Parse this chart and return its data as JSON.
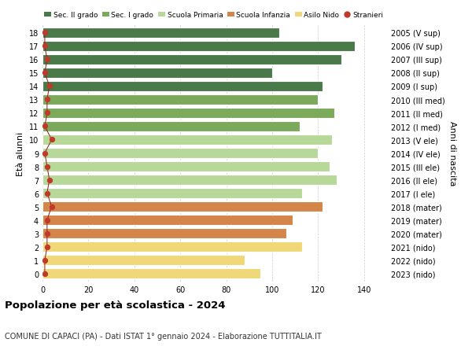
{
  "ages": [
    18,
    17,
    16,
    15,
    14,
    13,
    12,
    11,
    10,
    9,
    8,
    7,
    6,
    5,
    4,
    3,
    2,
    1,
    0
  ],
  "labels_right": [
    "2005 (V sup)",
    "2006 (IV sup)",
    "2007 (III sup)",
    "2008 (II sup)",
    "2009 (I sup)",
    "2010 (III med)",
    "2011 (II med)",
    "2012 (I med)",
    "2013 (V ele)",
    "2014 (IV ele)",
    "2015 (III ele)",
    "2016 (II ele)",
    "2017 (I ele)",
    "2018 (mater)",
    "2019 (mater)",
    "2020 (mater)",
    "2021 (nido)",
    "2022 (nido)",
    "2023 (nido)"
  ],
  "values": [
    103,
    136,
    130,
    100,
    122,
    120,
    127,
    112,
    126,
    120,
    125,
    128,
    113,
    122,
    109,
    106,
    113,
    88,
    95
  ],
  "stranieri": [
    1,
    1,
    2,
    1,
    3,
    2,
    2,
    1,
    4,
    1,
    2,
    3,
    2,
    4,
    2,
    2,
    2,
    1,
    1
  ],
  "bar_colors": [
    "#4a7a4a",
    "#4a7a4a",
    "#4a7a4a",
    "#4a7a4a",
    "#4a7a4a",
    "#7aaa5a",
    "#7aaa5a",
    "#7aaa5a",
    "#b8d89a",
    "#b8d89a",
    "#b8d89a",
    "#b8d89a",
    "#b8d89a",
    "#d4854a",
    "#d4854a",
    "#d4854a",
    "#f0d878",
    "#f0d878",
    "#f0d878"
  ],
  "legend_labels": [
    "Sec. II grado",
    "Sec. I grado",
    "Scuola Primaria",
    "Scuola Infanzia",
    "Asilo Nido",
    "Stranieri"
  ],
  "legend_colors": [
    "#4a7a4a",
    "#7aaa5a",
    "#b8d89a",
    "#d4854a",
    "#f0d878",
    "#c0392b"
  ],
  "title": "Popolazione per età scolastica - 2024",
  "subtitle": "COMUNE DI CAPACI (PA) - Dati ISTAT 1° gennaio 2024 - Elaborazione TUTTITALIA.IT",
  "ylabel": "Età alunni",
  "ylabel_right": "Anni di nascita",
  "xlim": [
    0,
    150
  ],
  "xticks": [
    0,
    20,
    40,
    60,
    80,
    100,
    120,
    140
  ],
  "background_color": "#ffffff",
  "grid_color": "#cccccc"
}
